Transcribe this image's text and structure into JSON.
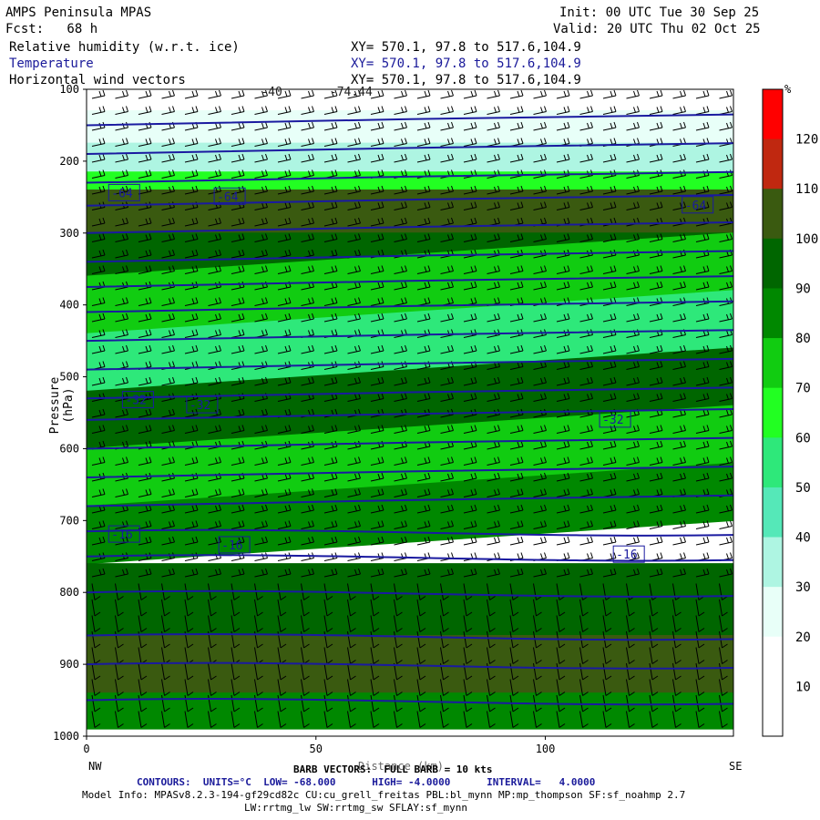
{
  "header": {
    "model": "AMPS Peninsula MPAS",
    "init": "Init: 00 UTC Tue 30 Sep 25",
    "fcst": "Fcst:   68 h",
    "valid": "Valid: 20 UTC Thu 02 Oct 25",
    "fields": [
      {
        "name": "Relative humidity (w.r.t. ice)",
        "xy": "XY= 570.1, 97.8 to 517.6,104.9"
      },
      {
        "name": "Temperature",
        "xy": "XY= 570.1, 97.8 to 517.6,104.9"
      },
      {
        "name": "Horizontal wind vectors",
        "xy": "XY= 570.1, 97.8 to 517.6,104.9"
      }
    ]
  },
  "chart_data": {
    "type": "heatmap",
    "ylabel": "Pressure (hPa)",
    "xlabel": "Distance (km)",
    "y_ticks": [
      100,
      200,
      300,
      400,
      500,
      600,
      700,
      800,
      900,
      1000
    ],
    "x_ticks": [
      0,
      50,
      100
    ],
    "ylim": [
      1000,
      100
    ],
    "xlim": [
      0,
      141
    ],
    "x_end_labels": {
      "left": "NW",
      "right": "SE"
    },
    "colorbar": {
      "unit": "%",
      "ticks": [
        10,
        20,
        30,
        40,
        50,
        60,
        70,
        80,
        90,
        100,
        110,
        120
      ],
      "colors": [
        "#ffffff",
        "#ffffff",
        "#e8fff8",
        "#aef5e2",
        "#55e8b8",
        "#2ee87a",
        "#22ff22",
        "#11cc11",
        "#008800",
        "#006600",
        "#3a5a10",
        "#c02810",
        "#ff0000"
      ]
    },
    "temperature_contour_labels": [
      {
        "label": "-64",
        "p": 245,
        "x": 8
      },
      {
        "label": "-64",
        "p": 250,
        "x": 31
      },
      {
        "label": "-64",
        "p": 262,
        "x": 133
      },
      {
        "label": "-32",
        "p": 533,
        "x": 11
      },
      {
        "label": "-32",
        "p": 540,
        "x": 25
      },
      {
        "label": "-32",
        "p": 560,
        "x": 115
      },
      {
        "label": "-16",
        "p": 720,
        "x": 8
      },
      {
        "label": "-16",
        "p": 735,
        "x": 32
      },
      {
        "label": "-16",
        "p": 748,
        "x": 118
      }
    ],
    "top_labels": [
      {
        "label": "-40",
        "x": 38
      },
      {
        "label": "-74.44",
        "x": 53
      }
    ],
    "rh_bands": [
      {
        "p_top": 100,
        "p_bot": 130,
        "rh": 5
      },
      {
        "p_top": 130,
        "p_bot": 175,
        "rh": 20
      },
      {
        "p_top": 175,
        "p_bot": 215,
        "rh": 35
      },
      {
        "p_top": 215,
        "p_bot": 240,
        "rh": 65
      },
      {
        "p_top": 240,
        "p_bot": 300,
        "rh": 105
      },
      {
        "p_top": 300,
        "p_bot": 360,
        "rh": 95
      },
      {
        "p_top": 360,
        "p_bot": 440,
        "rh": 75
      },
      {
        "p_top": 440,
        "p_bot": 520,
        "rh": 55
      },
      {
        "p_top": 520,
        "p_bot": 600,
        "rh": 95
      },
      {
        "p_top": 600,
        "p_bot": 680,
        "rh": 75
      },
      {
        "p_top": 680,
        "p_bot": 760,
        "rh": 85
      },
      {
        "p_top": 760,
        "p_bot": 860,
        "rh": 95
      },
      {
        "p_top": 860,
        "p_bot": 940,
        "rh": 105
      },
      {
        "p_top": 940,
        "p_bot": 990,
        "rh": 85
      }
    ],
    "annotations": {
      "barb": "BARB VECTORS:  FULL BARB = 10 kts",
      "contours": "CONTOURS:  UNITS=°C  LOW= -68.000      HIGH= -4.0000      INTERVAL=   4.0000",
      "model_info_1": "Model Info: MPASv8.2.3-194-gf29cd82c CU:cu_grell_freitas PBL:bl_mynn MP:mp_thompson SF:sf_noahmp 2.7",
      "model_info_2": "LW:rrtmg_lw SW:rrtmg_sw SFLAY:sf_mynn"
    }
  }
}
